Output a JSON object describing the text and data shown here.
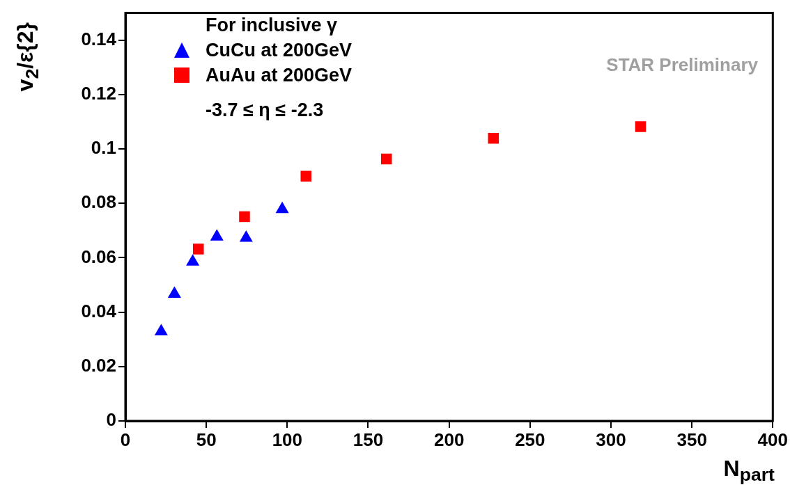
{
  "chart_data": {
    "type": "scatter",
    "xlabel": "N$_{part}$",
    "ylabel": "v$_{2}$/ε{2}",
    "legend_title": "For inclusive γ",
    "legend": "top left",
    "grid": false,
    "xlim": [
      0,
      400
    ],
    "xticks": [
      0,
      50,
      100,
      150,
      200,
      250,
      300,
      350,
      400
    ],
    "ylim": [
      0,
      0.15
    ],
    "yticks": [
      0,
      0.02,
      0.04,
      0.06,
      0.08,
      0.1,
      0.12,
      0.14
    ],
    "annotations": [
      "-3.7 ≤ η ≤ -2.3",
      "STAR Preliminary"
    ],
    "series": [
      {
        "name": "CuCu at 200GeV",
        "color": "#0000ff",
        "marker": "triangle",
        "x": [
          22.1,
          30.3,
          41.6,
          56.5,
          74.6,
          96.9
        ],
        "values": [
          0.0329,
          0.0467,
          0.0585,
          0.0677,
          0.0673,
          0.0778
        ]
      },
      {
        "name": "AuAu at 200GeV",
        "color": "#ff0000",
        "marker": "square",
        "x": [
          45.1,
          73.6,
          111.6,
          161.3,
          227.4,
          318.3
        ],
        "values": [
          0.0632,
          0.0751,
          0.09,
          0.0963,
          0.1039,
          0.1082
        ]
      }
    ]
  }
}
